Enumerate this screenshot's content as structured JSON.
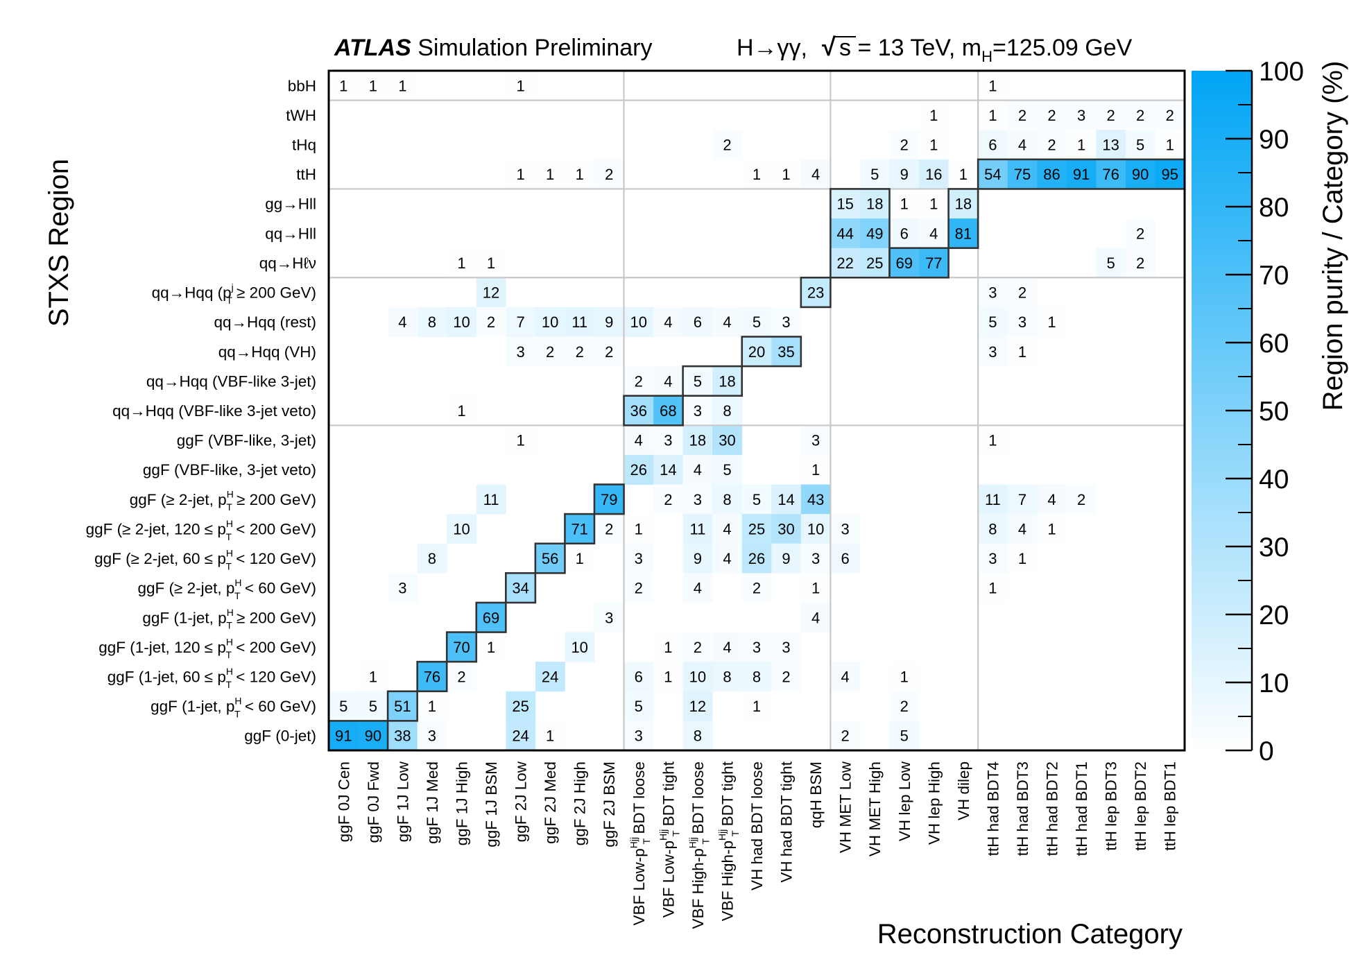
{
  "chart_data": {
    "type": "heatmap",
    "title": "Simulation Preliminary",
    "title_bold": "ATLAS",
    "title_right": {
      "process": "H→γγ,",
      "sqrt": "√",
      "energy": "s = 13 TeV, m",
      "mass_sub": "H",
      "mass_value": "=125.09 GeV"
    },
    "xlabel": "Reconstruction Category",
    "ylabel": "STXS Region",
    "colorbar_label": "Region purity / Category (%)",
    "colorbar_ticks": [
      "0",
      "10",
      "20",
      "30",
      "40",
      "50",
      "60",
      "70",
      "80",
      "90",
      "100"
    ],
    "zlim": [
      0,
      100
    ],
    "colors": {
      "low": "#ffffff",
      "high": "#00a5f5",
      "grid": "#c8c8c8",
      "frame": "#000000",
      "box": "#333333"
    },
    "x_categories": [
      "ggF 0J Cen",
      "ggF 0J Fwd",
      "ggF 1J Low",
      "ggF 1J Med",
      "ggF 1J High",
      "ggF 1J BSM",
      "ggF 2J Low",
      "ggF 2J Med",
      "ggF 2J High",
      "ggF 2J BSM",
      "VBF Low-pTHjj BDT loose",
      "VBF Low-pTHjj BDT tight",
      "VBF High-pTHjj BDT loose",
      "VBF High-pTHjj BDT tight",
      "VH had BDT loose",
      "VH had BDT tight",
      "qqH BSM",
      "VH MET Low",
      "VH MET High",
      "VH lep Low",
      "VH lep High",
      "VH dilep",
      "ttH had BDT4",
      "ttH had BDT3",
      "ttH had BDT2",
      "ttH had BDT1",
      "ttH lep BDT3",
      "ttH lep BDT2",
      "ttH lep BDT1"
    ],
    "x_labels": [
      {
        "text": "ggF 0J Cen"
      },
      {
        "text": "ggF 0J Fwd"
      },
      {
        "text": "ggF 1J Low"
      },
      {
        "text": "ggF 1J Med"
      },
      {
        "text": "ggF 1J High"
      },
      {
        "text": "ggF 1J BSM"
      },
      {
        "text": "ggF 2J Low"
      },
      {
        "text": "ggF 2J Med"
      },
      {
        "text": "ggF 2J High"
      },
      {
        "text": "ggF 2J BSM"
      },
      {
        "pre": "VBF Low-p",
        "sup": "Hjj",
        "sub": "T",
        "post": " BDT loose"
      },
      {
        "pre": "VBF Low-p",
        "sup": "Hjj",
        "sub": "T",
        "post": " BDT tight"
      },
      {
        "pre": "VBF High-p",
        "sup": "Hjj",
        "sub": "T",
        "post": " BDT loose"
      },
      {
        "pre": "VBF High-p",
        "sup": "Hjj",
        "sub": "T",
        "post": " BDT tight"
      },
      {
        "text": "VH had BDT loose"
      },
      {
        "text": "VH had BDT tight"
      },
      {
        "text": "qqH BSM"
      },
      {
        "text": "VH MET Low"
      },
      {
        "text": "VH MET High"
      },
      {
        "text": "VH lep Low"
      },
      {
        "text": "VH lep High"
      },
      {
        "text": "VH dilep"
      },
      {
        "text": "ttH had BDT4"
      },
      {
        "text": "ttH had BDT3"
      },
      {
        "text": "ttH had BDT2"
      },
      {
        "text": "ttH had BDT1"
      },
      {
        "text": "ttH lep BDT3"
      },
      {
        "text": "ttH lep BDT2"
      },
      {
        "text": "ttH lep BDT1"
      }
    ],
    "y_categories": [
      "bbH",
      "tWH",
      "tHq",
      "ttH",
      "gg→Hll",
      "qq→Hll",
      "qq→Hℓν",
      "qq→Hqq (pjT ≥ 200 GeV)",
      "qq→Hqq (rest)",
      "qq→Hqq (VH)",
      "qq→Hqq (VBF-like 3-jet)",
      "qq→Hqq (VBF-like 3-jet veto)",
      "ggF (VBF-like, 3-jet)",
      "ggF (VBF-like, 3-jet veto)",
      "ggF (≥ 2-jet, pHT ≥ 200 GeV)",
      "ggF (≥ 2-jet, 120 ≤ pHT < 200 GeV)",
      "ggF (≥ 2-jet, 60 ≤ pHT < 120 GeV)",
      "ggF (≥ 2-jet, pHT < 60 GeV)",
      "ggF (1-jet, pHT ≥ 200 GeV)",
      "ggF (1-jet, 120  ≤ pHT < 200 GeV)",
      "ggF (1-jet, 60  ≤ pHT < 120 GeV)",
      "ggF (1-jet, pHT < 60 GeV)",
      "ggF (0-jet)"
    ],
    "y_labels": [
      {
        "text": "bbH"
      },
      {
        "text": "tWH"
      },
      {
        "text": "tHq"
      },
      {
        "text": "ttH"
      },
      {
        "text": "gg→Hll"
      },
      {
        "text": "qq→Hll"
      },
      {
        "text": "qq→Hℓν"
      },
      {
        "pre": "qq→Hqq (p",
        "sup": "j",
        "sub": "T",
        "post": " ≥ 200 GeV)"
      },
      {
        "text": "qq→Hqq (rest)"
      },
      {
        "text": "qq→Hqq (VH)"
      },
      {
        "text": "qq→Hqq (VBF-like 3-jet)"
      },
      {
        "text": "qq→Hqq (VBF-like 3-jet veto)"
      },
      {
        "text": "ggF (VBF-like, 3-jet)"
      },
      {
        "text": "ggF (VBF-like, 3-jet veto)"
      },
      {
        "pre": "ggF (≥ 2-jet, p",
        "sup": "H",
        "sub": "T",
        "post": " ≥ 200 GeV)"
      },
      {
        "pre": "ggF (≥ 2-jet, 120 ≤ p",
        "sup": "H",
        "sub": "T",
        "post": " < 200 GeV)"
      },
      {
        "pre": "ggF (≥ 2-jet, 60 ≤ p",
        "sup": "H",
        "sub": "T",
        "post": " < 120 GeV)"
      },
      {
        "pre": "ggF (≥ 2-jet, p",
        "sup": "H",
        "sub": "T",
        "post": " < 60 GeV)"
      },
      {
        "pre": "ggF (1-jet, p",
        "sup": "H",
        "sub": "T",
        "post": " ≥ 200 GeV)"
      },
      {
        "pre": "ggF (1-jet, 120  ≤ p",
        "sup": "H",
        "sub": "T",
        "post": " < 200 GeV)"
      },
      {
        "pre": "ggF (1-jet, 60  ≤ p",
        "sup": "H",
        "sub": "T",
        "post": " < 120 GeV)"
      },
      {
        "pre": "ggF (1-jet, p",
        "sup": "H",
        "sub": "T",
        "post": " < 60 GeV)"
      },
      {
        "text": "ggF (0-jet)"
      }
    ],
    "values": [
      [
        1,
        1,
        1,
        0,
        0,
        0,
        1,
        0,
        0,
        0,
        0,
        0,
        0,
        0,
        0,
        0,
        0,
        0,
        0,
        0,
        0,
        0,
        1,
        0,
        0,
        0,
        0,
        0,
        0
      ],
      [
        0,
        0,
        0,
        0,
        0,
        0,
        0,
        0,
        0,
        0,
        0,
        0,
        0,
        0,
        0,
        0,
        0,
        0,
        0,
        0,
        1,
        0,
        1,
        2,
        2,
        3,
        2,
        2,
        2
      ],
      [
        0,
        0,
        0,
        0,
        0,
        0,
        0,
        0,
        0,
        0,
        0,
        0,
        0,
        2,
        0,
        0,
        0,
        0,
        0,
        2,
        1,
        0,
        6,
        4,
        2,
        1,
        13,
        5,
        1
      ],
      [
        0,
        0,
        0,
        0,
        0,
        0,
        1,
        1,
        1,
        2,
        0,
        0,
        0,
        0,
        1,
        1,
        4,
        0,
        5,
        9,
        16,
        1,
        54,
        75,
        86,
        91,
        76,
        90,
        95
      ],
      [
        0,
        0,
        0,
        0,
        0,
        0,
        0,
        0,
        0,
        0,
        0,
        0,
        0,
        0,
        0,
        0,
        0,
        15,
        18,
        1,
        1,
        18,
        0,
        0,
        0,
        0,
        0,
        0,
        0
      ],
      [
        0,
        0,
        0,
        0,
        0,
        0,
        0,
        0,
        0,
        0,
        0,
        0,
        0,
        0,
        0,
        0,
        0,
        44,
        49,
        6,
        4,
        81,
        0,
        0,
        0,
        0,
        0,
        2,
        0
      ],
      [
        0,
        0,
        0,
        0,
        1,
        1,
        0,
        0,
        0,
        0,
        0,
        0,
        0,
        0,
        0,
        0,
        0,
        22,
        25,
        69,
        77,
        0,
        0,
        0,
        0,
        0,
        5,
        2,
        0
      ],
      [
        0,
        0,
        0,
        0,
        0,
        12,
        0,
        0,
        0,
        0,
        0,
        0,
        0,
        0,
        0,
        0,
        23,
        0,
        0,
        0,
        0,
        0,
        3,
        2,
        0,
        0,
        0,
        0,
        0
      ],
      [
        0,
        0,
        4,
        8,
        10,
        2,
        7,
        10,
        11,
        9,
        10,
        4,
        6,
        4,
        5,
        3,
        0,
        0,
        0,
        0,
        0,
        0,
        5,
        3,
        1,
        0,
        0,
        0,
        0
      ],
      [
        0,
        0,
        0,
        0,
        0,
        0,
        3,
        2,
        2,
        2,
        0,
        0,
        0,
        0,
        20,
        35,
        0,
        0,
        0,
        0,
        0,
        0,
        3,
        1,
        0,
        0,
        0,
        0,
        0
      ],
      [
        0,
        0,
        0,
        0,
        0,
        0,
        0,
        0,
        0,
        0,
        2,
        4,
        5,
        18,
        0,
        0,
        0,
        0,
        0,
        0,
        0,
        0,
        0,
        0,
        0,
        0,
        0,
        0,
        0
      ],
      [
        0,
        0,
        0,
        0,
        1,
        0,
        0,
        0,
        0,
        0,
        36,
        68,
        3,
        8,
        0,
        0,
        0,
        0,
        0,
        0,
        0,
        0,
        0,
        0,
        0,
        0,
        0,
        0,
        0
      ],
      [
        0,
        0,
        0,
        0,
        0,
        0,
        1,
        0,
        0,
        0,
        4,
        3,
        18,
        30,
        0,
        0,
        3,
        0,
        0,
        0,
        0,
        0,
        1,
        0,
        0,
        0,
        0,
        0,
        0
      ],
      [
        0,
        0,
        0,
        0,
        0,
        0,
        0,
        0,
        0,
        0,
        26,
        14,
        4,
        5,
        0,
        0,
        1,
        0,
        0,
        0,
        0,
        0,
        0,
        0,
        0,
        0,
        0,
        0,
        0
      ],
      [
        0,
        0,
        0,
        0,
        0,
        11,
        0,
        0,
        0,
        79,
        0,
        2,
        3,
        8,
        5,
        14,
        43,
        0,
        0,
        0,
        0,
        0,
        11,
        7,
        4,
        2,
        0,
        0,
        0
      ],
      [
        0,
        0,
        0,
        0,
        10,
        0,
        0,
        0,
        71,
        2,
        1,
        0,
        11,
        4,
        25,
        30,
        10,
        3,
        0,
        0,
        0,
        0,
        8,
        4,
        1,
        0,
        0,
        0,
        0
      ],
      [
        0,
        0,
        0,
        8,
        0,
        0,
        0,
        56,
        1,
        0,
        3,
        0,
        9,
        4,
        26,
        9,
        3,
        6,
        0,
        0,
        0,
        0,
        3,
        1,
        0,
        0,
        0,
        0,
        0
      ],
      [
        0,
        0,
        3,
        0,
        0,
        0,
        34,
        0,
        0,
        0,
        2,
        0,
        4,
        0,
        2,
        0,
        1,
        0,
        0,
        0,
        0,
        0,
        1,
        0,
        0,
        0,
        0,
        0,
        0
      ],
      [
        0,
        0,
        0,
        0,
        0,
        69,
        0,
        0,
        0,
        3,
        0,
        0,
        0,
        0,
        0,
        0,
        4,
        0,
        0,
        0,
        0,
        0,
        0,
        0,
        0,
        0,
        0,
        0,
        0
      ],
      [
        0,
        0,
        0,
        0,
        70,
        1,
        0,
        0,
        10,
        0,
        0,
        1,
        2,
        4,
        3,
        3,
        0,
        0,
        0,
        0,
        0,
        0,
        0,
        0,
        0,
        0,
        0,
        0,
        0
      ],
      [
        0,
        1,
        0,
        76,
        2,
        0,
        0,
        24,
        0,
        0,
        6,
        1,
        10,
        8,
        8,
        2,
        0,
        4,
        0,
        1,
        0,
        0,
        0,
        0,
        0,
        0,
        0,
        0,
        0
      ],
      [
        5,
        5,
        51,
        1,
        0,
        0,
        25,
        0,
        0,
        0,
        5,
        0,
        12,
        0,
        1,
        0,
        0,
        0,
        0,
        2,
        0,
        0,
        0,
        0,
        0,
        0,
        0,
        0,
        0
      ],
      [
        91,
        90,
        38,
        3,
        0,
        0,
        24,
        1,
        0,
        0,
        3,
        0,
        8,
        0,
        0,
        0,
        0,
        2,
        0,
        5,
        0,
        0,
        0,
        0,
        0,
        0,
        0,
        0,
        0
      ]
    ],
    "highlight_boxes": [
      {
        "cols": [
          0,
          1
        ],
        "rows": [
          22,
          22
        ]
      },
      {
        "cols": [
          2,
          2
        ],
        "rows": [
          21,
          21
        ]
      },
      {
        "cols": [
          3,
          3
        ],
        "rows": [
          20,
          20
        ]
      },
      {
        "cols": [
          4,
          4
        ],
        "rows": [
          19,
          19
        ]
      },
      {
        "cols": [
          5,
          5
        ],
        "rows": [
          18,
          18
        ]
      },
      {
        "cols": [
          6,
          6
        ],
        "rows": [
          17,
          17
        ]
      },
      {
        "cols": [
          7,
          7
        ],
        "rows": [
          16,
          16
        ]
      },
      {
        "cols": [
          8,
          8
        ],
        "rows": [
          15,
          15
        ]
      },
      {
        "cols": [
          9,
          9
        ],
        "rows": [
          14,
          14
        ]
      },
      {
        "cols": [
          10,
          11
        ],
        "rows": [
          11,
          11
        ]
      },
      {
        "cols": [
          12,
          13
        ],
        "rows": [
          10,
          10
        ]
      },
      {
        "cols": [
          14,
          15
        ],
        "rows": [
          9,
          9
        ]
      },
      {
        "cols": [
          16,
          16
        ],
        "rows": [
          7,
          7
        ]
      },
      {
        "cols": [
          17,
          18
        ],
        "rows": [
          4,
          6
        ]
      },
      {
        "cols": [
          19,
          20
        ],
        "rows": [
          6,
          6
        ]
      },
      {
        "cols": [
          21,
          21
        ],
        "rows": [
          4,
          5
        ]
      },
      {
        "cols": [
          22,
          28
        ],
        "rows": [
          3,
          3
        ]
      }
    ],
    "group_separators_x": [
      10,
      17,
      22
    ],
    "group_separators_y": [
      1,
      4,
      7,
      12
    ]
  }
}
